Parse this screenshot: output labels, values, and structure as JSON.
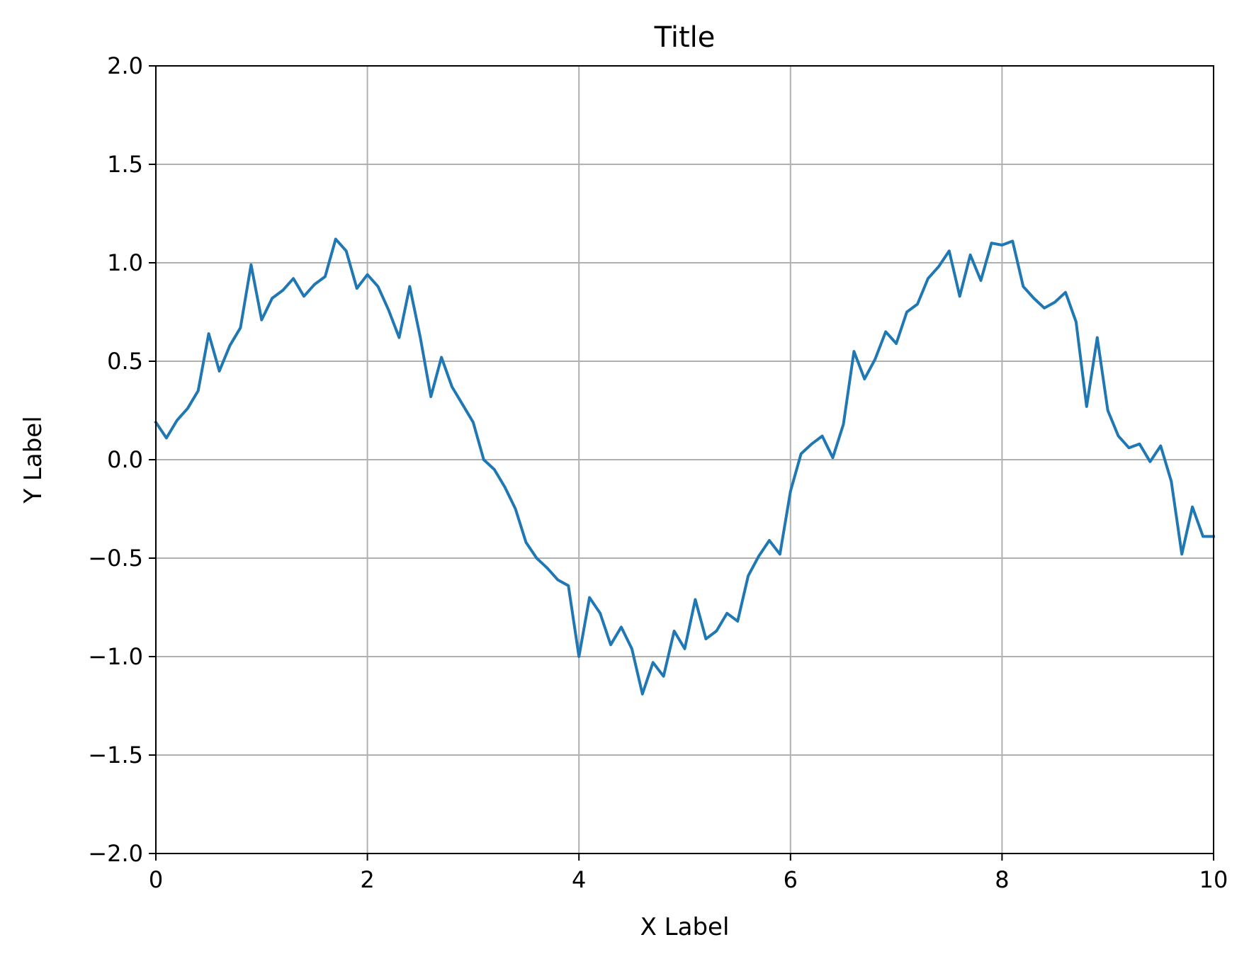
{
  "chart_data": {
    "type": "line",
    "title": "Title",
    "xlabel": "X Label",
    "ylabel": "Y Label",
    "xlim": [
      0,
      10
    ],
    "ylim": [
      -2.0,
      2.0
    ],
    "grid": true,
    "line_color": "#1f77b4",
    "grid_color": "#b0b0b0",
    "x_ticks": [
      {
        "value": 0,
        "label": "0"
      },
      {
        "value": 2,
        "label": "2"
      },
      {
        "value": 4,
        "label": "4"
      },
      {
        "value": 6,
        "label": "6"
      },
      {
        "value": 8,
        "label": "8"
      },
      {
        "value": 10,
        "label": "10"
      }
    ],
    "y_ticks": [
      {
        "value": 2.0,
        "label": "2.0"
      },
      {
        "value": 1.5,
        "label": "1.5"
      },
      {
        "value": 1.0,
        "label": "1.0"
      },
      {
        "value": 0.5,
        "label": "0.5"
      },
      {
        "value": 0.0,
        "label": "0.0"
      },
      {
        "value": -0.5,
        "label": "−0.5"
      },
      {
        "value": -1.0,
        "label": "−1.0"
      },
      {
        "value": -1.5,
        "label": "−1.5"
      },
      {
        "value": -2.0,
        "label": "−2.0"
      }
    ],
    "series": [
      {
        "x": [
          0.0,
          0.1,
          0.2,
          0.3,
          0.4,
          0.5,
          0.6,
          0.7,
          0.8,
          0.9,
          1.0,
          1.1,
          1.2,
          1.3,
          1.4,
          1.5,
          1.6,
          1.7,
          1.8,
          1.9,
          2.0,
          2.1,
          2.2,
          2.3,
          2.4,
          2.5,
          2.6,
          2.7,
          2.8,
          2.9,
          3.0,
          3.1,
          3.2,
          3.3,
          3.4,
          3.5,
          3.6,
          3.7,
          3.8,
          3.9,
          4.0,
          4.1,
          4.2,
          4.3,
          4.4,
          4.5,
          4.6,
          4.7,
          4.8,
          4.9,
          5.0,
          5.1,
          5.2,
          5.3,
          5.4,
          5.5,
          5.6,
          5.7,
          5.8,
          5.9,
          6.0,
          6.1,
          6.2,
          6.3,
          6.4,
          6.5,
          6.6,
          6.7,
          6.8,
          6.9,
          7.0,
          7.1,
          7.2,
          7.3,
          7.4,
          7.5,
          7.6,
          7.7,
          7.8,
          7.9,
          8.0,
          8.1,
          8.2,
          8.3,
          8.4,
          8.5,
          8.6,
          8.7,
          8.8,
          8.9,
          9.0,
          9.1,
          9.2,
          9.3,
          9.4,
          9.5,
          9.6,
          9.7,
          9.8,
          9.9,
          10.0
        ],
        "y": [
          0.19,
          0.11,
          0.2,
          0.26,
          0.35,
          0.64,
          0.45,
          0.58,
          0.67,
          0.99,
          0.71,
          0.82,
          0.86,
          0.92,
          0.83,
          0.89,
          0.93,
          1.12,
          1.06,
          0.87,
          0.94,
          0.88,
          0.76,
          0.62,
          0.88,
          0.62,
          0.32,
          0.52,
          0.37,
          0.28,
          0.19,
          0.0,
          -0.05,
          -0.14,
          -0.25,
          -0.42,
          -0.5,
          -0.55,
          -0.61,
          -0.64,
          -1.0,
          -0.7,
          -0.78,
          -0.94,
          -0.85,
          -0.96,
          -1.19,
          -1.03,
          -1.1,
          -0.87,
          -0.96,
          -0.71,
          -0.91,
          -0.87,
          -0.78,
          -0.82,
          -0.59,
          -0.49,
          -0.41,
          -0.48,
          -0.16,
          0.03,
          0.08,
          0.12,
          0.01,
          0.18,
          0.55,
          0.41,
          0.51,
          0.65,
          0.59,
          0.75,
          0.79,
          0.92,
          0.98,
          1.06,
          0.83,
          1.04,
          0.91,
          1.1,
          1.09,
          1.11,
          0.88,
          0.82,
          0.77,
          0.8,
          0.85,
          0.7,
          0.27,
          0.62,
          0.25,
          0.12,
          0.06,
          0.08,
          -0.01,
          0.07,
          -0.11,
          -0.48,
          -0.24,
          -0.39,
          -0.39
        ]
      }
    ]
  }
}
